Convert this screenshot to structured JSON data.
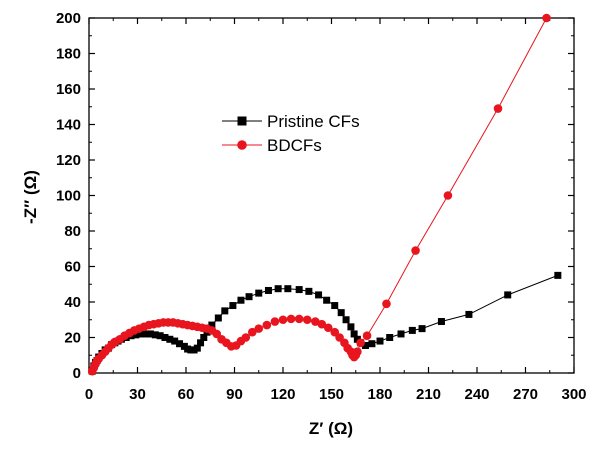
{
  "chart_data": {
    "type": "scatter",
    "title": "",
    "xlabel": "Z′ (Ω)",
    "ylabel": "-Z′′ (Ω)",
    "xlim": [
      0,
      300
    ],
    "ylim": [
      0,
      200
    ],
    "xticks": [
      0,
      30,
      60,
      90,
      120,
      150,
      180,
      210,
      240,
      270,
      300
    ],
    "yticks": [
      0,
      20,
      40,
      60,
      80,
      100,
      120,
      140,
      160,
      180,
      200
    ],
    "grid": false,
    "legend_position": "upper-center",
    "series": [
      {
        "name": "Pristine CFs",
        "color": "#000000",
        "marker": "square",
        "points": [
          [
            2,
            1
          ],
          [
            3,
            4
          ],
          [
            4,
            6
          ],
          [
            5,
            7
          ],
          [
            6,
            9
          ],
          [
            8,
            11
          ],
          [
            10,
            13
          ],
          [
            12,
            14
          ],
          [
            14,
            16
          ],
          [
            16,
            17
          ],
          [
            18,
            18
          ],
          [
            20,
            19
          ],
          [
            23,
            20
          ],
          [
            26,
            21
          ],
          [
            29,
            21.5
          ],
          [
            32,
            22
          ],
          [
            35,
            22
          ],
          [
            38,
            22
          ],
          [
            41,
            21.5
          ],
          [
            44,
            21
          ],
          [
            47,
            20
          ],
          [
            50,
            19
          ],
          [
            53,
            18
          ],
          [
            56,
            16.5
          ],
          [
            59,
            15
          ],
          [
            61,
            13.5
          ],
          [
            63,
            13
          ],
          [
            65,
            13
          ],
          [
            67,
            14
          ],
          [
            69,
            17
          ],
          [
            71,
            20
          ],
          [
            73,
            23
          ],
          [
            76,
            27
          ],
          [
            80,
            31
          ],
          [
            84,
            35
          ],
          [
            89,
            38
          ],
          [
            94,
            41
          ],
          [
            99,
            43
          ],
          [
            105,
            45
          ],
          [
            111,
            46.5
          ],
          [
            117,
            47.5
          ],
          [
            123,
            47.5
          ],
          [
            130,
            47
          ],
          [
            136,
            46
          ],
          [
            142,
            44
          ],
          [
            147,
            41
          ],
          [
            152,
            38
          ],
          [
            156,
            34
          ],
          [
            159,
            30
          ],
          [
            162,
            26
          ],
          [
            164,
            22
          ],
          [
            166,
            19
          ],
          [
            168,
            17
          ],
          [
            171,
            15.5
          ],
          [
            175,
            16.5
          ],
          [
            180,
            18
          ],
          [
            186,
            20
          ],
          [
            193,
            22
          ],
          [
            200,
            24
          ],
          [
            206,
            25
          ],
          [
            218,
            29
          ],
          [
            235,
            33
          ],
          [
            259,
            44
          ],
          [
            290,
            55
          ]
        ]
      },
      {
        "name": "BDCFs",
        "color": "#e8141e",
        "marker": "circle",
        "points": [
          [
            2,
            1
          ],
          [
            3,
            3
          ],
          [
            4,
            5
          ],
          [
            5,
            7
          ],
          [
            6,
            8
          ],
          [
            8,
            10
          ],
          [
            10,
            12
          ],
          [
            12,
            14
          ],
          [
            14,
            16
          ],
          [
            16,
            17.5
          ],
          [
            19,
            19
          ],
          [
            22,
            21
          ],
          [
            25,
            22.5
          ],
          [
            28,
            24
          ],
          [
            31,
            25
          ],
          [
            34,
            26
          ],
          [
            37,
            27
          ],
          [
            40,
            27.5
          ],
          [
            43,
            28
          ],
          [
            46,
            28.5
          ],
          [
            49,
            28.5
          ],
          [
            52,
            28.5
          ],
          [
            55,
            28
          ],
          [
            58,
            27.5
          ],
          [
            61,
            27
          ],
          [
            64,
            26.5
          ],
          [
            67,
            26
          ],
          [
            70,
            25.5
          ],
          [
            73,
            25
          ],
          [
            76,
            24
          ],
          [
            79,
            22
          ],
          [
            82,
            19
          ],
          [
            85,
            17
          ],
          [
            88,
            15
          ],
          [
            91,
            15.5
          ],
          [
            94,
            18
          ],
          [
            97,
            20
          ],
          [
            101,
            23
          ],
          [
            105,
            25
          ],
          [
            110,
            27
          ],
          [
            115,
            29
          ],
          [
            120,
            30
          ],
          [
            125,
            30.5
          ],
          [
            130,
            30.5
          ],
          [
            135,
            30
          ],
          [
            140,
            29
          ],
          [
            144,
            27.5
          ],
          [
            148,
            25.5
          ],
          [
            152,
            23
          ],
          [
            155,
            20
          ],
          [
            158,
            17
          ],
          [
            160,
            14
          ],
          [
            162,
            12
          ],
          [
            163,
            10
          ],
          [
            164,
            9
          ],
          [
            165,
            10
          ],
          [
            166,
            12
          ],
          [
            168,
            17
          ],
          [
            172,
            21
          ],
          [
            184,
            39
          ],
          [
            202,
            69
          ],
          [
            222,
            100
          ],
          [
            253,
            149
          ],
          [
            283,
            200
          ]
        ]
      }
    ]
  }
}
